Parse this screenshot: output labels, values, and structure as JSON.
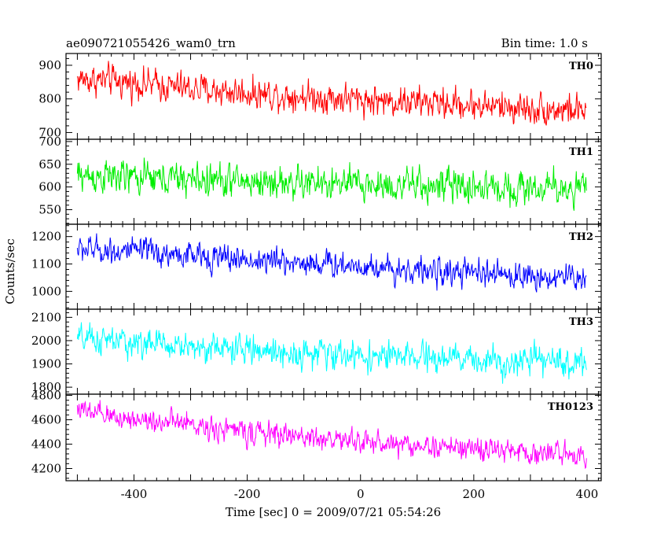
{
  "chart_data": {
    "type": "line",
    "title_left": "ae090721055426_wam0_trn",
    "title_right": "Bin time: 1.0 s",
    "xlabel": "Time [sec] 0 = 2009/07/21 05:54:26",
    "ylabel": "Counts/sec",
    "xlim": [
      -520,
      425
    ],
    "x_ticks": [
      -400,
      -200,
      0,
      200,
      400
    ],
    "x_range_data": [
      -500,
      399
    ],
    "panels": [
      {
        "name": "TH0",
        "color": "#ff0000",
        "ylim": [
          680,
          935
        ],
        "y_ticks": [
          700,
          800,
          900
        ],
        "trend": {
          "x": [
            -500,
            -400,
            -300,
            -200,
            -100,
            0,
            100,
            200,
            300,
            400
          ],
          "y": [
            860,
            848,
            830,
            818,
            808,
            798,
            790,
            782,
            772,
            765
          ]
        },
        "noise_amplitude": 52
      },
      {
        "name": "TH1",
        "color": "#00ee00",
        "ylim": [
          518,
          705
        ],
        "y_ticks": [
          550,
          600,
          650,
          700
        ],
        "trend": {
          "x": [
            -500,
            -400,
            -300,
            -200,
            -100,
            0,
            100,
            200,
            300,
            400
          ],
          "y": [
            625,
            620,
            617,
            612,
            608,
            605,
            603,
            600,
            598,
            597
          ]
        },
        "noise_amplitude": 42
      },
      {
        "name": "TH2",
        "color": "#0000ff",
        "ylim": [
          935,
          1245
        ],
        "y_ticks": [
          1000,
          1100,
          1200
        ],
        "trend": {
          "x": [
            -500,
            -400,
            -300,
            -200,
            -100,
            0,
            100,
            200,
            300,
            400
          ],
          "y": [
            1155,
            1145,
            1130,
            1115,
            1105,
            1095,
            1075,
            1065,
            1055,
            1050
          ]
        },
        "noise_amplitude": 55
      },
      {
        "name": "TH3",
        "color": "#00ffff",
        "ylim": [
          1770,
          2135
        ],
        "y_ticks": [
          1800,
          1900,
          2000,
          2100
        ],
        "trend": {
          "x": [
            -500,
            -400,
            -300,
            -200,
            -100,
            0,
            100,
            200,
            300,
            400
          ],
          "y": [
            2005,
            1990,
            1975,
            1960,
            1945,
            1935,
            1925,
            1918,
            1910,
            1905
          ]
        },
        "noise_amplitude": 70
      },
      {
        "name": "TH0123",
        "color": "#ff00ff",
        "ylim": [
          4100,
          4810
        ],
        "y_ticks": [
          4200,
          4400,
          4600,
          4800
        ],
        "trend": {
          "x": [
            -500,
            -490,
            -450,
            -400,
            -300,
            -200,
            -100,
            0,
            100,
            200,
            300,
            400
          ],
          "y": [
            4720,
            4660,
            4630,
            4610,
            4560,
            4500,
            4460,
            4420,
            4390,
            4360,
            4330,
            4320
          ]
        },
        "noise_amplitude": 110
      }
    ],
    "grid": false,
    "legend": "none"
  }
}
